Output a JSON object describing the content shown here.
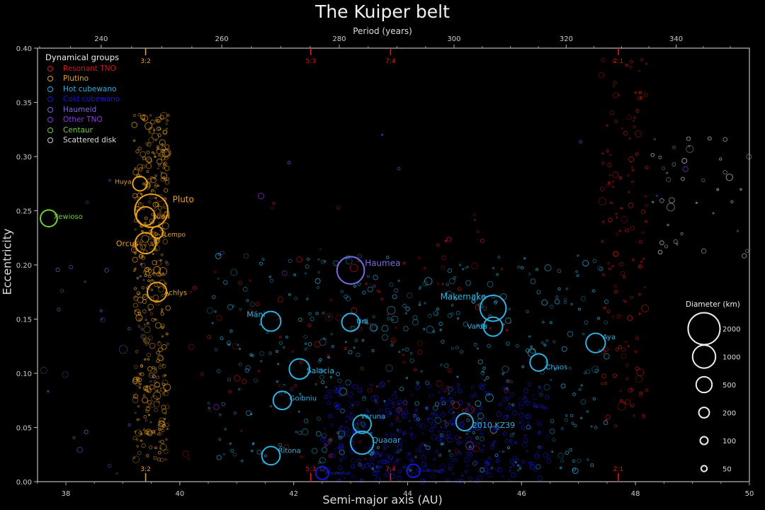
{
  "chart_data": {
    "type": "scatter",
    "title": "The Kuiper belt",
    "xlabel": "Semi-major axis (AU)",
    "ylabel": "Eccentricity",
    "x2label": "Period (years)",
    "xlim": [
      37.5,
      50
    ],
    "ylim": [
      0,
      0.4
    ],
    "xticks": [
      38,
      40,
      42,
      44,
      46,
      48,
      50
    ],
    "yticks": [
      "0.00",
      "0.05",
      "0.10",
      "0.15",
      "0.20",
      "0.25",
      "0.30",
      "0.35",
      "0.40"
    ],
    "x2ticks": [
      240,
      260,
      280,
      300,
      320,
      340
    ],
    "grid": false,
    "background": "#000000",
    "legend_position": "upper left",
    "resonances": [
      {
        "label": "3:2",
        "a": 39.4,
        "color": "#e8a020"
      },
      {
        "label": "5:3",
        "a": 42.3,
        "color": "#e01818"
      },
      {
        "label": "7:4",
        "a": 43.7,
        "color": "#e01818"
      },
      {
        "label": "2:1",
        "a": 47.7,
        "color": "#e01818"
      }
    ],
    "groups": [
      {
        "name": "Resonant TNO",
        "color": "#d01818"
      },
      {
        "name": "Plutino",
        "color": "#e8a020"
      },
      {
        "name": "Hot cubewano",
        "color": "#30b0e0"
      },
      {
        "name": "Cold cubewano",
        "color": "#1818d0"
      },
      {
        "name": "Haumeid",
        "color": "#7a6ae0"
      },
      {
        "name": "Other TNO",
        "color": "#8a3ad8"
      },
      {
        "name": "Centaur",
        "color": "#70d030"
      },
      {
        "name": "Scattered disk",
        "color": "#d0d0d0"
      }
    ],
    "size_legend": {
      "title": "Diameter (km)",
      "sizes": [
        2000,
        1000,
        500,
        200,
        100,
        50
      ]
    },
    "named_objects": [
      {
        "name": "Pluto",
        "a": 39.5,
        "e": 0.25,
        "diameter": 2377,
        "group": "Plutino"
      },
      {
        "name": "Ixion",
        "a": 39.4,
        "e": 0.245,
        "diameter": 710,
        "group": "Plutino"
      },
      {
        "name": "Huya",
        "a": 39.3,
        "e": 0.275,
        "diameter": 410,
        "group": "Plutino"
      },
      {
        "name": "Lempo",
        "a": 39.6,
        "e": 0.23,
        "diameter": 270,
        "group": "Plutino"
      },
      {
        "name": "Orcus",
        "a": 39.4,
        "e": 0.22,
        "diameter": 910,
        "group": "Plutino"
      },
      {
        "name": "Achlys",
        "a": 39.6,
        "e": 0.175,
        "diameter": 770,
        "group": "Plutino"
      },
      {
        "name": "Xewioso",
        "a": 37.7,
        "e": 0.243,
        "diameter": 565,
        "group": "Centaur"
      },
      {
        "name": "Haumea",
        "a": 43.0,
        "e": 0.195,
        "diameter": 1600,
        "group": "Haumeid"
      },
      {
        "name": "Makemake",
        "a": 45.5,
        "e": 0.16,
        "diameter": 1430,
        "group": "Hot cubewano"
      },
      {
        "name": "Varda",
        "a": 45.5,
        "e": 0.143,
        "diameter": 740,
        "group": "Hot cubewano"
      },
      {
        "name": "Máni",
        "a": 41.6,
        "e": 0.148,
        "diameter": 800,
        "group": "Hot cubewano"
      },
      {
        "name": "Uni",
        "a": 43.0,
        "e": 0.147,
        "diameter": 640,
        "group": "Hot cubewano"
      },
      {
        "name": "Salacia",
        "a": 42.1,
        "e": 0.104,
        "diameter": 850,
        "group": "Hot cubewano"
      },
      {
        "name": "Goibniu",
        "a": 41.8,
        "e": 0.075,
        "diameter": 680,
        "group": "Hot cubewano"
      },
      {
        "name": "Chaos",
        "a": 46.3,
        "e": 0.11,
        "diameter": 600,
        "group": "Hot cubewano"
      },
      {
        "name": "Aya",
        "a": 47.3,
        "e": 0.128,
        "diameter": 770,
        "group": "Hot cubewano"
      },
      {
        "name": "Varuna",
        "a": 43.2,
        "e": 0.053,
        "diameter": 670,
        "group": "Hot cubewano"
      },
      {
        "name": "Quaoar",
        "a": 43.2,
        "e": 0.036,
        "diameter": 1110,
        "group": "Hot cubewano"
      },
      {
        "name": "2010 KZ39",
        "a": 45.0,
        "e": 0.055,
        "diameter": 600,
        "group": "Hot cubewano"
      },
      {
        "name": "Ritona",
        "a": 41.6,
        "e": 0.024,
        "diameter": 680,
        "group": "Hot cubewano"
      },
      {
        "name": "Praamzius",
        "a": 42.5,
        "e": 0.008,
        "diameter": 320,
        "group": "Cold cubewano"
      },
      {
        "name": "Sila-Nunam",
        "a": 44.1,
        "e": 0.01,
        "diameter": 340,
        "group": "Cold cubewano"
      }
    ]
  },
  "labels": {
    "title": "The Kuiper belt",
    "x2label": "Period (years)",
    "xlabel": "Semi-major axis (AU)",
    "ylabel": "Eccentricity",
    "legend_title": "Dynamical groups",
    "size_title": "Diameter (km)"
  }
}
